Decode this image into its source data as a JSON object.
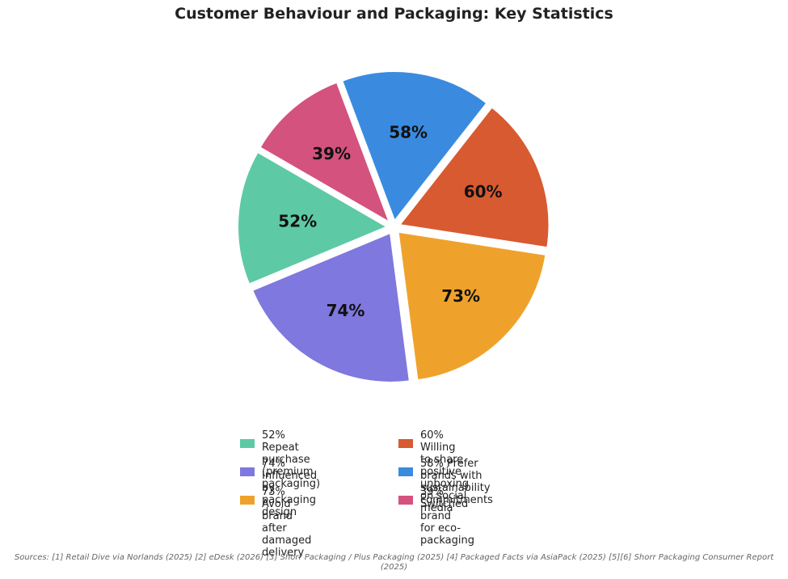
{
  "chart_data": {
    "type": "pie",
    "title": "Customer Behaviour and Packaging: Key Statistics",
    "slices": [
      {
        "label": "52% Repeat purchase\n(premium packaging)",
        "value": 52,
        "display": "52%",
        "color": "#5ECAA5"
      },
      {
        "label": "74% Influenced by\npackaging design",
        "value": 74,
        "display": "74%",
        "color": "#7F78DE"
      },
      {
        "label": "73% Avoid brand after\ndamaged delivery",
        "value": 73,
        "display": "73%",
        "color": "#EFA22B"
      },
      {
        "label": "60% Willing to share positive\nunboxing on social media",
        "value": 60,
        "display": "60%",
        "color": "#D85A30"
      },
      {
        "label": "58% Prefer brands with\nsustainability commitments",
        "value": 58,
        "display": "58%",
        "color": "#3A8BE0"
      },
      {
        "label": "39% Switched brand\nfor eco-packaging",
        "value": 39,
        "display": "39%",
        "color": "#D4527E"
      }
    ],
    "legend_position": "bottom-center"
  },
  "sources": "Sources: [1] Retail Dive via Norlands (2025)  [2] eDesk (2026)  [3] Shorr Packaging / Plus Packaging (2025)  [4] Packaged Facts via AsiaPack (2025)  [5][6] Shorr Packaging Consumer Report (2025)"
}
